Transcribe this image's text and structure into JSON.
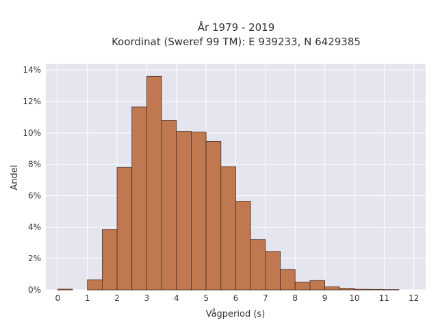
{
  "chart_data": {
    "type": "bar",
    "title": "År 1979 - 2019",
    "subtitle": "Koordinat (Sweref 99 TM): E 939233, N 6429385",
    "xlabel": "Vågperiod (s)",
    "ylabel": "Andel",
    "xlim": [
      -0.4,
      12.4
    ],
    "ylim": [
      0,
      14.4
    ],
    "x_ticks": [
      0,
      1,
      2,
      3,
      4,
      5,
      6,
      7,
      8,
      9,
      10,
      11,
      12
    ],
    "y_ticks": [
      0,
      2,
      4,
      6,
      8,
      10,
      12,
      14
    ],
    "y_tick_suffix": "%",
    "grid": true,
    "bin_width": 0.5,
    "bins": [
      {
        "start": 0.0,
        "end": 0.5,
        "value": 0.05
      },
      {
        "start": 0.5,
        "end": 1.0,
        "value": 0.0
      },
      {
        "start": 1.0,
        "end": 1.5,
        "value": 0.65
      },
      {
        "start": 1.5,
        "end": 2.0,
        "value": 3.85
      },
      {
        "start": 2.0,
        "end": 2.5,
        "value": 7.8
      },
      {
        "start": 2.5,
        "end": 3.0,
        "value": 11.65
      },
      {
        "start": 3.0,
        "end": 3.5,
        "value": 13.6
      },
      {
        "start": 3.5,
        "end": 4.0,
        "value": 10.8
      },
      {
        "start": 4.0,
        "end": 4.5,
        "value": 10.1
      },
      {
        "start": 4.5,
        "end": 5.0,
        "value": 10.05
      },
      {
        "start": 5.0,
        "end": 5.5,
        "value": 9.45
      },
      {
        "start": 5.5,
        "end": 6.0,
        "value": 7.85
      },
      {
        "start": 6.0,
        "end": 6.5,
        "value": 5.65
      },
      {
        "start": 6.5,
        "end": 7.0,
        "value": 3.2
      },
      {
        "start": 7.0,
        "end": 7.5,
        "value": 2.45
      },
      {
        "start": 7.5,
        "end": 8.0,
        "value": 1.3
      },
      {
        "start": 8.0,
        "end": 8.5,
        "value": 0.5
      },
      {
        "start": 8.5,
        "end": 9.0,
        "value": 0.6
      },
      {
        "start": 9.0,
        "end": 9.5,
        "value": 0.2
      },
      {
        "start": 9.5,
        "end": 10.0,
        "value": 0.1
      },
      {
        "start": 10.0,
        "end": 10.5,
        "value": 0.04
      },
      {
        "start": 10.5,
        "end": 11.0,
        "value": 0.03
      },
      {
        "start": 11.0,
        "end": 11.5,
        "value": 0.02
      }
    ],
    "colors": {
      "bar_fill": "#c07850",
      "bar_stroke": "#4a2c1c",
      "plot_background": "#e5e5f0",
      "grid": "#ffffff",
      "text": "#333333"
    }
  }
}
